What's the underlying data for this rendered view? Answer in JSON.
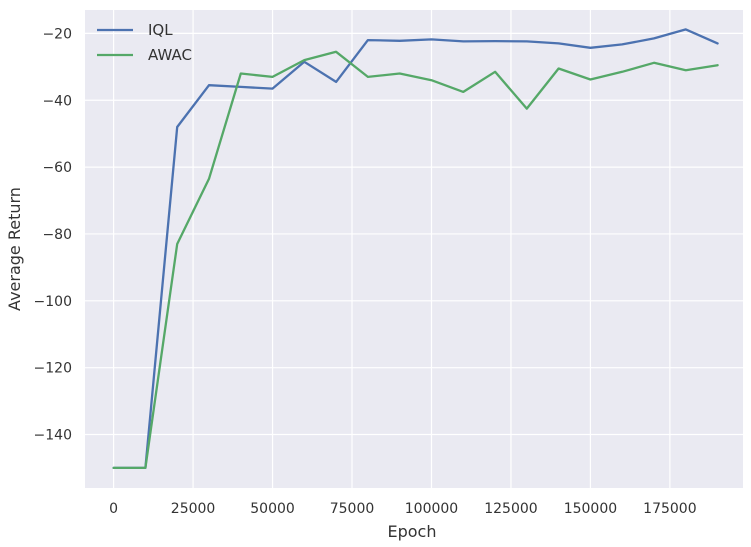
{
  "chart_data": {
    "type": "line",
    "title": "",
    "xlabel": "Epoch",
    "ylabel": "Average Return",
    "xlim": [
      -9000,
      198000
    ],
    "ylim": [
      -156,
      -13
    ],
    "x_ticks": [
      0,
      25000,
      50000,
      75000,
      100000,
      125000,
      150000,
      175000
    ],
    "x_tick_labels": [
      "0",
      "25000",
      "50000",
      "75000",
      "100000",
      "125000",
      "150000",
      "175000"
    ],
    "y_ticks": [
      -20,
      -40,
      -60,
      -80,
      -100,
      -120,
      -140
    ],
    "y_tick_labels": [
      "−20",
      "−40",
      "−60",
      "−80",
      "−100",
      "−120",
      "−140"
    ],
    "grid": true,
    "legend_position": "top-left",
    "x": [
      0,
      10000,
      20000,
      30000,
      40000,
      50000,
      60000,
      70000,
      80000,
      90000,
      100000,
      110000,
      120000,
      130000,
      140000,
      150000,
      160000,
      170000,
      180000,
      190000
    ],
    "series": [
      {
        "name": "IQL",
        "color": "#4c72b0",
        "values": [
          -150,
          -150,
          -48,
          -35.5,
          -36,
          -36.5,
          -28.5,
          -34.5,
          -22,
          -22.2,
          -21.8,
          -22.4,
          -22.3,
          -22.4,
          -23,
          -24.3,
          -23.3,
          -21.5,
          -18.8,
          -23
        ]
      },
      {
        "name": "AWAC",
        "color": "#55a868",
        "values": [
          -150,
          -150,
          -83,
          -63.5,
          -32,
          -33,
          -28,
          -25.5,
          -33,
          -32,
          -34,
          -37.5,
          -31.5,
          -42.5,
          -30.5,
          -33.8,
          -31.5,
          -28.8,
          -31,
          -29.5
        ]
      }
    ]
  }
}
